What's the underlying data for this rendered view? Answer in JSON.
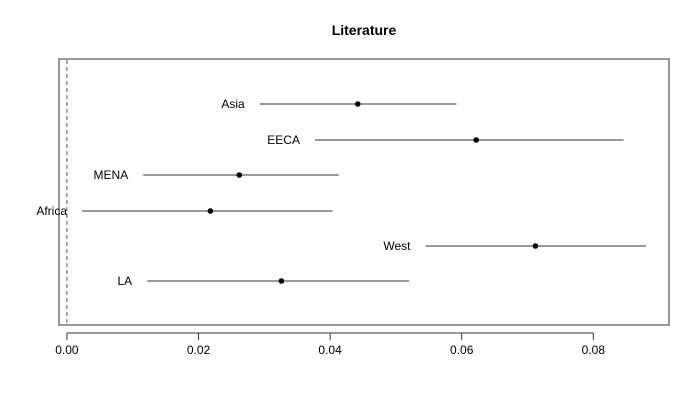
{
  "chart_data": {
    "type": "forest",
    "title": "Literature",
    "xlabel": "",
    "ylabel": "",
    "xlim": [
      -0.0012,
      0.0915
    ],
    "xticks": [
      0.0,
      0.02,
      0.04,
      0.06,
      0.08
    ],
    "xtick_labels": [
      "0.00",
      "0.02",
      "0.04",
      "0.06",
      "0.08"
    ],
    "reference_line": 0.0,
    "grid": false,
    "legend": "none",
    "rows": [
      {
        "label": "Asia",
        "estimate": 0.0442,
        "lower": 0.0293,
        "upper": 0.0592
      },
      {
        "label": "EECA",
        "estimate": 0.0622,
        "lower": 0.0377,
        "upper": 0.0846
      },
      {
        "label": "MENA",
        "estimate": 0.0262,
        "lower": 0.0116,
        "upper": 0.0413
      },
      {
        "label": "Africa",
        "estimate": 0.0218,
        "lower": 0.0023,
        "upper": 0.0404
      },
      {
        "label": "West",
        "estimate": 0.0712,
        "lower": 0.0545,
        "upper": 0.088
      },
      {
        "label": "LA",
        "estimate": 0.0326,
        "lower": 0.0122,
        "upper": 0.052
      }
    ]
  }
}
